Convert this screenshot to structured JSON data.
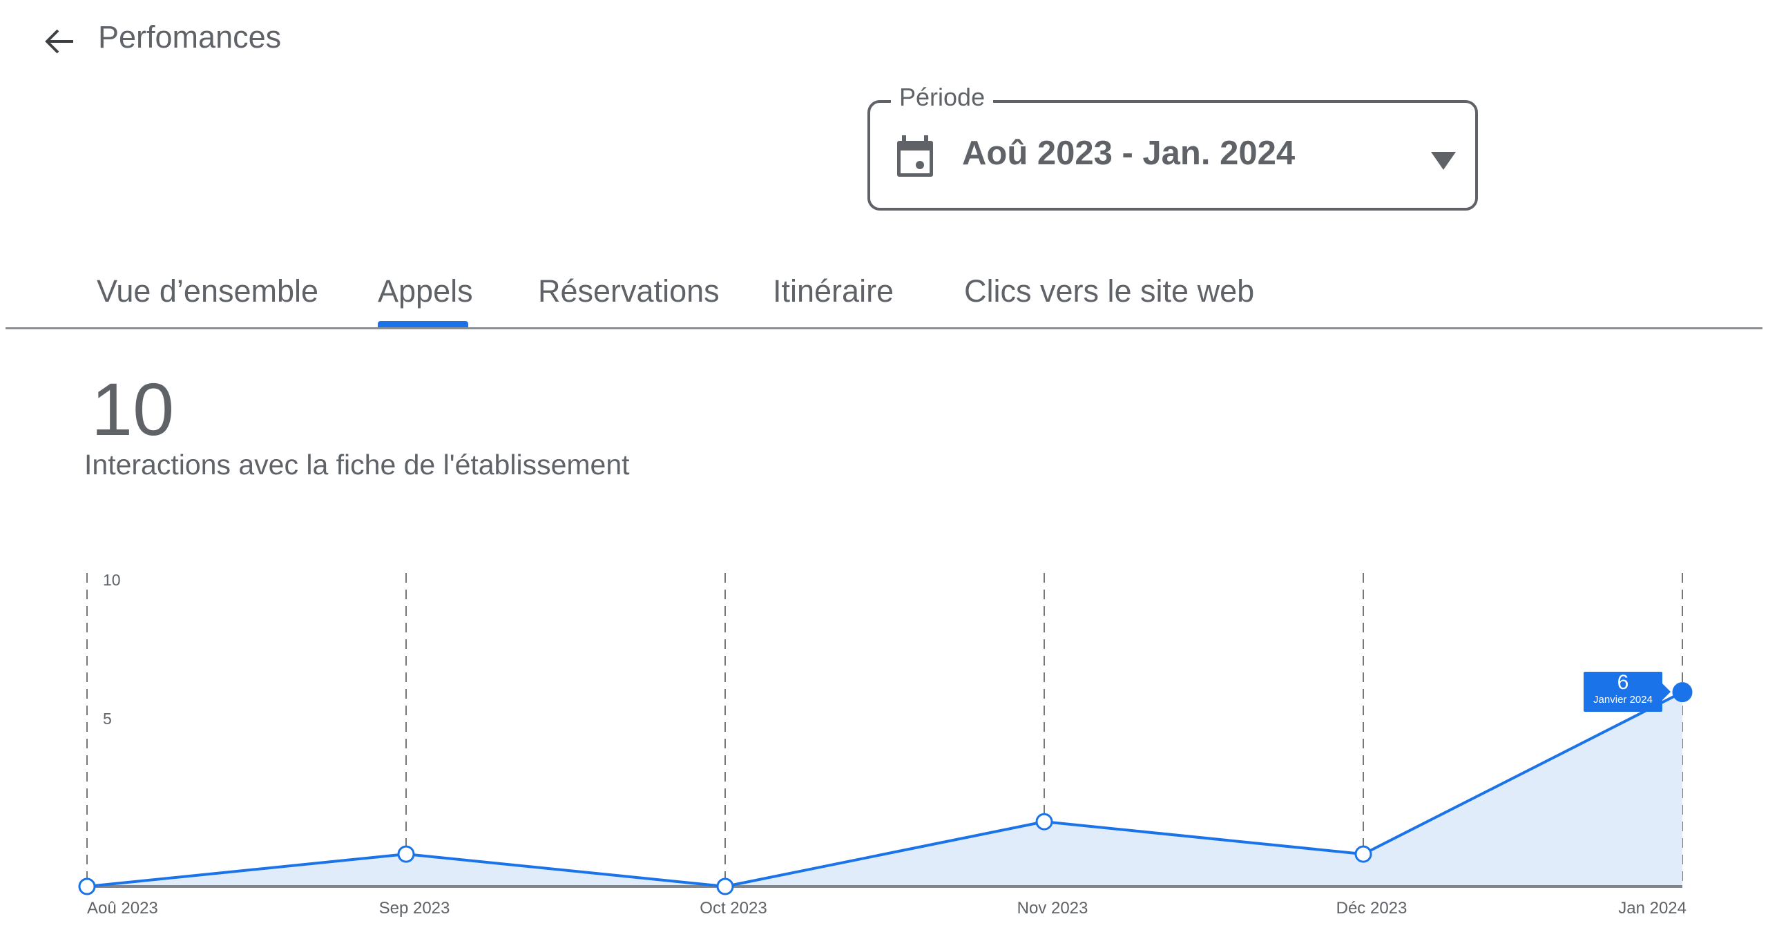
{
  "header": {
    "title": "Perfomances",
    "back_icon": "arrow-left-icon"
  },
  "period": {
    "label": "Période",
    "value": "Aoû 2023 - Jan. 2024",
    "icon": "calendar-icon"
  },
  "tabs": [
    {
      "label": "Vue d’ensemble",
      "active": false
    },
    {
      "label": "Appels",
      "active": true
    },
    {
      "label": "Réservations",
      "active": false
    },
    {
      "label": "Itinéraire",
      "active": false
    },
    {
      "label": "Clics vers le site web",
      "active": false
    }
  ],
  "summary": {
    "total": "10",
    "label": "Interactions avec la fiche de l'établissement"
  },
  "colors": {
    "accent": "#1a73e8",
    "area": "#e1ecfb",
    "text": "#5f6368"
  },
  "chart_data": {
    "type": "area",
    "categories": [
      "Aoû 2023",
      "Sep 2023",
      "Oct 2023",
      "Nov 2023",
      "Déc 2023",
      "Jan 2024"
    ],
    "values": [
      0,
      1,
      0,
      2,
      1,
      6
    ],
    "ylim": [
      0,
      10
    ],
    "yticks": [
      "10",
      "5"
    ],
    "grid": "vertical dashed",
    "tooltip": {
      "value": "6",
      "label": "Janvier 2024"
    }
  }
}
